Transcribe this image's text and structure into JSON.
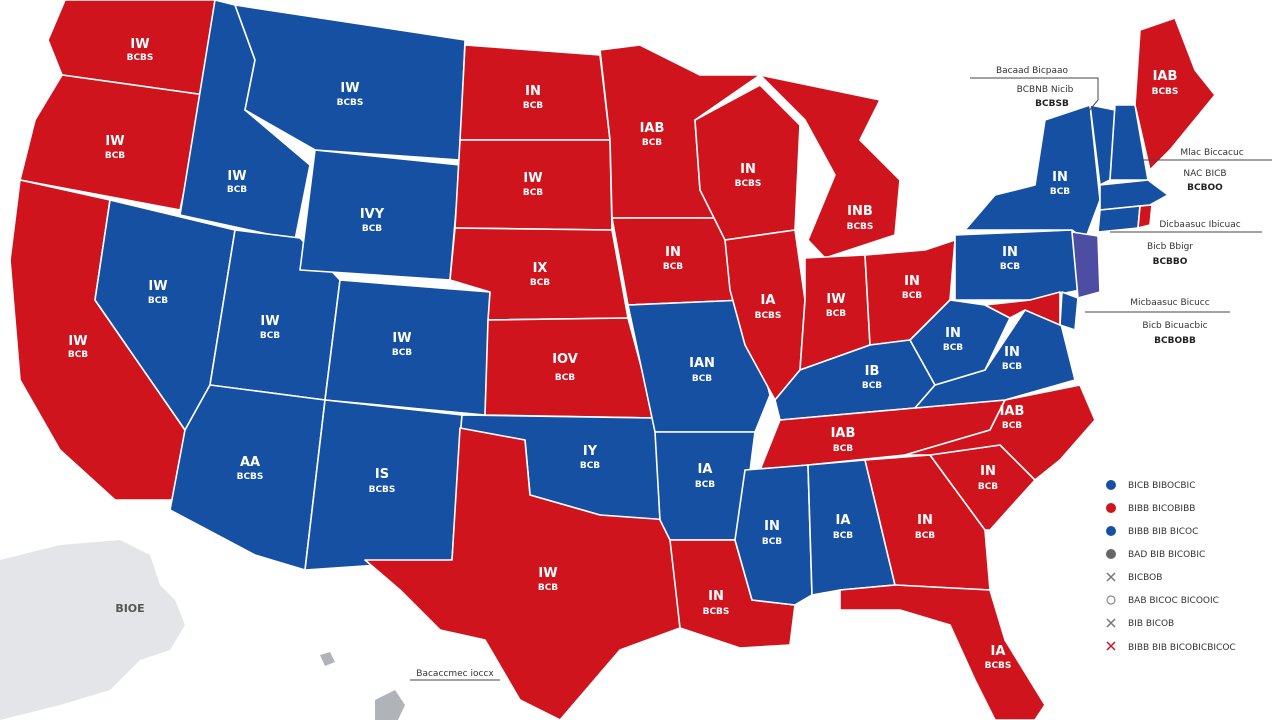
{
  "colors": {
    "red": "#d0141d",
    "blue": "#1650a2",
    "purple": "#4d4da3",
    "gray": "#d7d9dd",
    "water": "#ffffff"
  },
  "states": [
    {
      "key": "wa",
      "abbr": "IW",
      "votes": "BCBS",
      "party": "red"
    },
    {
      "key": "or",
      "abbr": "IW",
      "votes": "BCB",
      "party": "red"
    },
    {
      "key": "ca",
      "abbr": "IW",
      "votes": "BCB",
      "party": "red"
    },
    {
      "key": "id",
      "abbr": "IW",
      "votes": "BCB",
      "party": "blue"
    },
    {
      "key": "mt",
      "abbr": "IW",
      "votes": "BCBS",
      "party": "blue"
    },
    {
      "key": "nv",
      "abbr": "IW",
      "votes": "BCB",
      "party": "blue"
    },
    {
      "key": "ut",
      "abbr": "IW",
      "votes": "BCB",
      "party": "blue"
    },
    {
      "key": "wy",
      "abbr": "IVY",
      "votes": "BCB",
      "party": "blue"
    },
    {
      "key": "co",
      "abbr": "IW",
      "votes": "BCB",
      "party": "blue"
    },
    {
      "key": "az",
      "abbr": "AA",
      "votes": "BCBS",
      "party": "blue"
    },
    {
      "key": "nm",
      "abbr": "IS",
      "votes": "BCBS",
      "party": "blue"
    },
    {
      "key": "nd",
      "abbr": "IN",
      "votes": "BCB",
      "party": "red"
    },
    {
      "key": "sd",
      "abbr": "IW",
      "votes": "BCB",
      "party": "red"
    },
    {
      "key": "ne",
      "abbr": "IX",
      "votes": "BCB",
      "party": "red"
    },
    {
      "key": "ks",
      "abbr": "IOV",
      "votes": "BCB",
      "party": "red"
    },
    {
      "key": "ok",
      "abbr": "IY",
      "votes": "BCB",
      "party": "blue"
    },
    {
      "key": "tx",
      "abbr": "IW",
      "votes": "BCB",
      "party": "red"
    },
    {
      "key": "mn",
      "abbr": "IAB",
      "votes": "BCB",
      "party": "red"
    },
    {
      "key": "ia",
      "abbr": "IN",
      "votes": "BCB",
      "party": "red"
    },
    {
      "key": "mo",
      "abbr": "IAN",
      "votes": "BCB",
      "party": "blue"
    },
    {
      "key": "ar",
      "abbr": "IA",
      "votes": "BCB",
      "party": "blue"
    },
    {
      "key": "la",
      "abbr": "IN",
      "votes": "BCBS",
      "party": "red"
    },
    {
      "key": "wi",
      "abbr": "IN",
      "votes": "BCBS",
      "party": "red"
    },
    {
      "key": "il",
      "abbr": "IA",
      "votes": "BCBS",
      "party": "red"
    },
    {
      "key": "mi",
      "abbr": "INB",
      "votes": "BCBS",
      "party": "red"
    },
    {
      "key": "in",
      "abbr": "IW",
      "votes": "BCB",
      "party": "red"
    },
    {
      "key": "oh",
      "abbr": "IN",
      "votes": "BCB",
      "party": "red"
    },
    {
      "key": "ky",
      "abbr": "IB",
      "votes": "BCB",
      "party": "blue"
    },
    {
      "key": "tn",
      "abbr": "IAB",
      "votes": "BCB",
      "party": "red"
    },
    {
      "key": "ms",
      "abbr": "IN",
      "votes": "BCB",
      "party": "blue"
    },
    {
      "key": "al",
      "abbr": "IA",
      "votes": "BCB",
      "party": "blue"
    },
    {
      "key": "ga",
      "abbr": "IN",
      "votes": "BCB",
      "party": "red"
    },
    {
      "key": "fl",
      "abbr": "IA",
      "votes": "BCBS",
      "party": "red"
    },
    {
      "key": "sc",
      "abbr": "IN",
      "votes": "BCB",
      "party": "red"
    },
    {
      "key": "nc",
      "abbr": "IAB",
      "votes": "BCB",
      "party": "red"
    },
    {
      "key": "va",
      "abbr": "IN",
      "votes": "BCB",
      "party": "blue"
    },
    {
      "key": "wv",
      "abbr": "IN",
      "votes": "BCB",
      "party": "blue"
    },
    {
      "key": "pa",
      "abbr": "IN",
      "votes": "BCB",
      "party": "blue"
    },
    {
      "key": "ny",
      "abbr": "IN",
      "votes": "BCB",
      "party": "blue"
    },
    {
      "key": "vt",
      "abbr": "",
      "votes": "",
      "party": "blue"
    },
    {
      "key": "nh",
      "abbr": "",
      "votes": "",
      "party": "blue"
    },
    {
      "key": "ma",
      "abbr": "",
      "votes": "",
      "party": "blue"
    },
    {
      "key": "ct",
      "abbr": "",
      "votes": "",
      "party": "blue"
    },
    {
      "key": "ri",
      "abbr": "",
      "votes": "",
      "party": "red"
    },
    {
      "key": "nj",
      "abbr": "",
      "votes": "",
      "party": "purple"
    },
    {
      "key": "de",
      "abbr": "",
      "votes": "",
      "party": "blue"
    },
    {
      "key": "md",
      "abbr": "",
      "votes": "",
      "party": "red"
    },
    {
      "key": "me",
      "abbr": "IAB",
      "votes": "BCBS",
      "party": "red"
    }
  ],
  "alaska_label": "BIOE",
  "callouts": {
    "c1": {
      "line1": "Bacaad Bicpaao",
      "line2": "BCBNB Nicib",
      "line3": "BCBSB"
    },
    "c2": {
      "line1": "Mlac Biccacuc",
      "line2": "NAC BICB",
      "line3": "BCBOO"
    },
    "c3": {
      "line1": "Dicbaasuc Ibicuac",
      "line2": "Bicb Bbigr",
      "line3": "BCBBO"
    },
    "c4": {
      "line1": "Micbaasuc Bicucc",
      "line2": "Bicb Bicuacbic",
      "line3": "BCBOBB"
    },
    "c5": {
      "line1": "Bacaccmec ioccx"
    }
  },
  "legend": [
    {
      "label": "BICB BIBOCBIC",
      "marker": "dot",
      "color": "#1650a2"
    },
    {
      "label": "BIBB BICOBIBB",
      "marker": "dot",
      "color": "#d0141d"
    },
    {
      "label": "BIBB BIB BICOC",
      "marker": "dot",
      "color": "#1650a2"
    },
    {
      "label": "BAD BIB BICOBIC",
      "marker": "dot",
      "color": "#666666"
    },
    {
      "label": "BICBOB",
      "marker": "cross",
      "color": "#777777"
    },
    {
      "label": "BAB BICOC BICOOIC",
      "marker": "ring",
      "color": "#888888"
    },
    {
      "label": "BIB BICOB",
      "marker": "cross",
      "color": "#777777"
    },
    {
      "label": "BIBB BIB BICOBICBICOC",
      "marker": "cross",
      "color": "#d0141d"
    }
  ]
}
